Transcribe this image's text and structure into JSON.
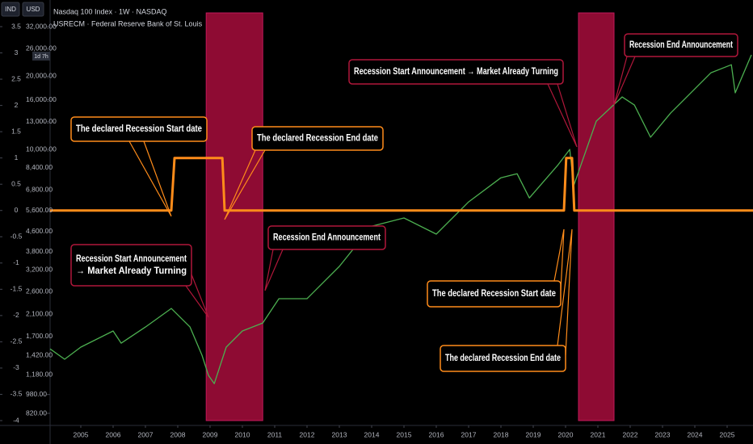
{
  "chart_data": {
    "type": "line",
    "title": "Nasdaq 100 Index · 1W · NASDAQ",
    "subtitle": "USRECM · Federal Reserve Bank of St. Louis",
    "buttons": [
      "IND",
      "USD"
    ],
    "countdown": "1d 7h",
    "xlim": [
      2004.05,
      2025.8
    ],
    "xticks": [
      2005,
      2006,
      2007,
      2008,
      2009,
      2010,
      2011,
      2012,
      2013,
      2014,
      2015,
      2016,
      2017,
      2018,
      2019,
      2020,
      2021,
      2022,
      2023,
      2024,
      2025
    ],
    "ylim": [
      -4,
      3.5
    ],
    "yticks": [
      3.5,
      3,
      2.5,
      2,
      1.5,
      1,
      0.5,
      0,
      -0.5,
      -1,
      -1.5,
      -2,
      -2.5,
      -3,
      -3.5,
      -4
    ],
    "y2lim": [
      820,
      32000
    ],
    "y2log": true,
    "y2ticks": [
      {
        "value": 32000,
        "label": "32,000.00"
      },
      {
        "value": 26000,
        "label": "26,000.00"
      },
      {
        "value": 20000,
        "label": "20,000.00"
      },
      {
        "value": 16000,
        "label": "16,000.00"
      },
      {
        "value": 13000,
        "label": "13,000.00"
      },
      {
        "value": 10000,
        "label": "10,000.00"
      },
      {
        "value": 8400,
        "label": "8,400.00"
      },
      {
        "value": 6800,
        "label": "6,800.00"
      },
      {
        "value": 5600,
        "label": "5,600.00"
      },
      {
        "value": 4600,
        "label": "4,600.00"
      },
      {
        "value": 3800,
        "label": "3,800.00"
      },
      {
        "value": 3200,
        "label": "3,200.00"
      },
      {
        "value": 2600,
        "label": "2,600.00"
      },
      {
        "value": 2100,
        "label": "2,100.00"
      },
      {
        "value": 1700,
        "label": "1,700.00"
      },
      {
        "value": 1420,
        "label": "1,420.00"
      },
      {
        "value": 1180,
        "label": "1,180.00"
      },
      {
        "value": 980,
        "label": "980.00"
      },
      {
        "value": 820,
        "label": "820.00"
      }
    ],
    "series": [
      {
        "color": "#ff8c1a",
        "x": [
          2004.05,
          2007.8,
          2007.9,
          2009.38,
          2009.45,
          2019.95,
          2020.02,
          2020.2,
          2020.27,
          2025.8
        ],
        "values": [
          0,
          0,
          1,
          1,
          0,
          0,
          1,
          1,
          0,
          0
        ]
      },
      {
        "color": "#4caf50",
        "axis": "y2",
        "x": [
          2004.05,
          2004.5,
          2005,
          2006,
          2006.25,
          2007,
          2007.8,
          2008.38,
          2008.75,
          2008.95,
          2009.13,
          2009.5,
          2010,
          2010.63,
          2011.13,
          2012,
          2013,
          2014,
          2015,
          2016,
          2017,
          2018,
          2018.5,
          2018.88,
          2019.75,
          2020.13,
          2020.25,
          2020.95,
          2021.75,
          2022.13,
          2022.63,
          2023.25,
          2024.5,
          2025.13,
          2025.25,
          2025.75
        ],
        "values": [
          1510,
          1369,
          1535,
          1789,
          1594,
          1858,
          2215,
          1858,
          1422,
          1175,
          1087,
          1535,
          1789,
          1930,
          2430,
          2430,
          3300,
          4830,
          5220,
          4480,
          6080,
          7640,
          7940,
          6310,
          8580,
          10000,
          7080,
          13070,
          16430,
          15230,
          11220,
          14100,
          20680,
          22300,
          17090,
          24480
        ]
      }
    ],
    "shaded_periods": {
      "color": "#8e0b33",
      "ranges": [
        [
          2008.88,
          2010.63
        ],
        [
          2020.4,
          2021.5
        ]
      ]
    },
    "annotations": [
      {
        "lines": [
          "The declared Recession Start date"
        ]
      },
      {
        "lines": [
          "The declared Recession End date"
        ]
      },
      {
        "lines": [
          "Recession Start Announcement",
          "→ Market Already Turning"
        ]
      },
      {
        "lines": [
          "Recession End Announcement"
        ]
      },
      {
        "lines": [
          "Recession Start Announcement → Market Already Turning"
        ]
      },
      {
        "lines": [
          "Recession End Announcement"
        ]
      },
      {
        "lines": [
          "The declared Recession Start date"
        ]
      },
      {
        "lines": [
          "The declared Recession End date"
        ]
      }
    ]
  }
}
